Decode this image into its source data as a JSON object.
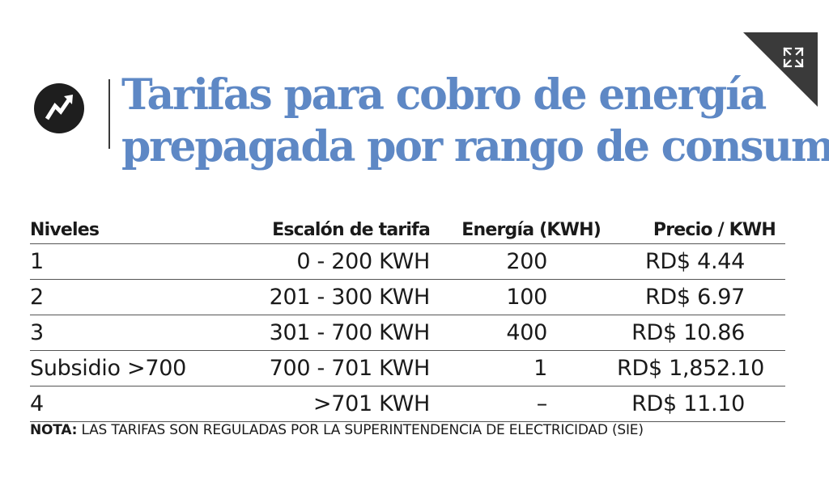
{
  "title": {
    "line1": "Tarifas para cobro de energía",
    "line2": "prepagada por rango de consumo"
  },
  "icons": {
    "logo": "trend-arrow-logo-icon",
    "expand": "expand-arrows-icon"
  },
  "colors": {
    "title": "#5e88c5",
    "logo_bg": "#1e1e1e",
    "corner": "#3a3a3a"
  },
  "table": {
    "headers": [
      "Niveles",
      "Escalón de tarifa",
      "Energía (KWH)",
      "Precio / KWH"
    ],
    "rows": [
      [
        "1",
        "0 - 200 KWH",
        "200",
        "RD$ 4.44"
      ],
      [
        "2",
        "201 - 300 KWH",
        "100",
        "RD$ 6.97"
      ],
      [
        "3",
        "301 - 700 KWH",
        "400",
        "RD$ 10.86"
      ],
      [
        "Subsidio >700",
        "700 - 701 KWH",
        "1",
        "RD$ 1,852.10"
      ],
      [
        "4",
        ">701 KWH",
        "–",
        "RD$ 11.10"
      ]
    ]
  },
  "note": {
    "label": "NOTA:",
    "text": " LAS TARIFAS SON REGULADAS POR LA SUPERINTENDENCIA DE ELECTRICIDAD (SIE)"
  }
}
